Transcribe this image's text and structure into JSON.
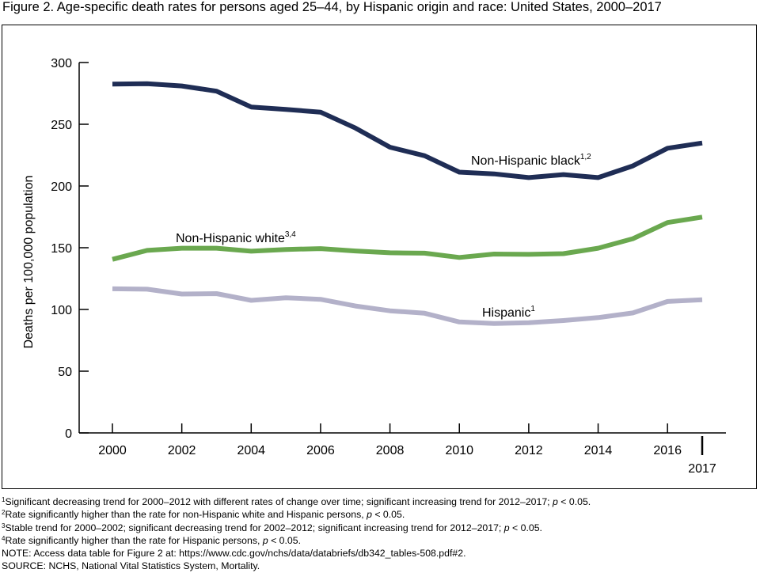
{
  "figure_title": "Figure 2. Age-specific death rates for persons aged 25–44, by Hispanic origin and race: United States, 2000–2017",
  "colors": {
    "non_hispanic_black": "#1f2d55",
    "non_hispanic_white": "#6aa84f",
    "hispanic": "#b3b1c9",
    "axis": "#000000"
  },
  "chart_data": {
    "type": "line",
    "ylabel": "Deaths per 100,000 population",
    "ylim": [
      0,
      300
    ],
    "yticks": [
      0,
      50,
      100,
      150,
      200,
      250,
      300
    ],
    "xlim": [
      2000,
      2017
    ],
    "xticks": [
      2000,
      2002,
      2004,
      2006,
      2008,
      2010,
      2012,
      2014,
      2016
    ],
    "xtick_last": 2017,
    "grid": false,
    "x": [
      2000,
      2001,
      2002,
      2003,
      2004,
      2005,
      2006,
      2007,
      2008,
      2009,
      2010,
      2011,
      2012,
      2013,
      2014,
      2015,
      2016,
      2017
    ],
    "series": [
      {
        "key": "non_hispanic_black",
        "name": "Non-Hispanic black",
        "sup": "1,2",
        "values": [
          282.5,
          282.8,
          281.0,
          276.8,
          264.0,
          262.0,
          259.8,
          247.0,
          231.4,
          224.5,
          211.2,
          209.8,
          206.8,
          209.2,
          206.8,
          216.3,
          230.6,
          234.8
        ]
      },
      {
        "key": "non_hispanic_white",
        "name": "Non-Hispanic white",
        "sup": "3,4",
        "values": [
          140.6,
          147.8,
          149.6,
          149.6,
          147.2,
          148.6,
          149.3,
          147.4,
          145.9,
          145.6,
          142.1,
          144.9,
          144.6,
          145.2,
          149.6,
          157.3,
          170.4,
          174.8
        ]
      },
      {
        "key": "hispanic",
        "name": "Hispanic",
        "sup": "1",
        "values": [
          116.7,
          116.4,
          112.5,
          112.8,
          107.4,
          109.5,
          108.2,
          102.8,
          98.9,
          96.9,
          89.9,
          88.6,
          89.2,
          91.0,
          93.4,
          97.2,
          106.5,
          107.8
        ]
      }
    ]
  },
  "footnotes": [
    {
      "sup": "1",
      "text": "Significant decreasing trend for 2000–2012 with different rates of change over time; significant increasing trend for 2012–2017; ",
      "p": "p",
      "tail": " < 0.05."
    },
    {
      "sup": "2",
      "text": "Rate significantly higher than the rate for non-Hispanic white and Hispanic persons, ",
      "p": "p",
      "tail": " < 0.05."
    },
    {
      "sup": "3",
      "text": "Stable trend for 2000–2002; significant decreasing trend for 2002–2012; significant increasing trend for 2012–2017; ",
      "p": "p",
      "tail": " < 0.05."
    },
    {
      "sup": "4",
      "text": "Rate significantly higher than the rate for Hispanic persons, ",
      "p": "p",
      "tail": " < 0.05."
    }
  ],
  "note": "NOTE: Access data table for Figure 2 at: https://www.cdc.gov/nchs/data/databriefs/db342_tables-508.pdf#2.",
  "source": "SOURCE: NCHS, National Vital Statistics System, Mortality."
}
